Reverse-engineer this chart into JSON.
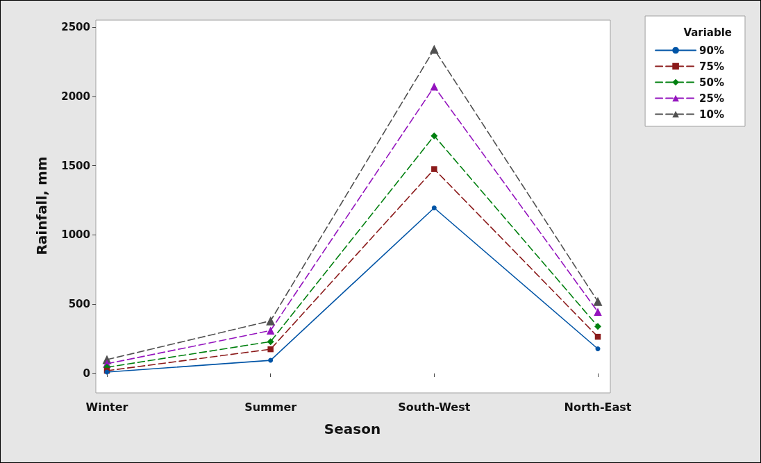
{
  "chart_data": {
    "type": "line",
    "xlabel": "Season",
    "ylabel": "Rainfall, mm",
    "legend_title": "Variable",
    "categories": [
      "Winter",
      "Summer",
      "South-West",
      "North-East"
    ],
    "series": [
      {
        "name": "90%",
        "color": "#0054a6",
        "marker": "circle",
        "line_style": "solid",
        "values": [
          10,
          95,
          1195,
          178
        ]
      },
      {
        "name": "75%",
        "color": "#8b1a1a",
        "marker": "square",
        "line_style": "dashed",
        "values": [
          20,
          175,
          1475,
          265
        ]
      },
      {
        "name": "50%",
        "color": "#00800f",
        "marker": "diamond",
        "line_style": "dashed",
        "values": [
          45,
          230,
          1715,
          340
        ]
      },
      {
        "name": "25%",
        "color": "#9414be",
        "marker": "triangle",
        "line_style": "dashed",
        "values": [
          70,
          310,
          2070,
          445
        ]
      },
      {
        "name": "10%",
        "color": "#505050",
        "marker": "triangle",
        "line_style": "dashed",
        "values": [
          100,
          380,
          2340,
          520
        ]
      }
    ],
    "ylim": [
      -130,
      2550
    ],
    "yticks": [
      0,
      500,
      1000,
      1500,
      2000,
      2500
    ],
    "grid": false,
    "legend": "top right"
  }
}
